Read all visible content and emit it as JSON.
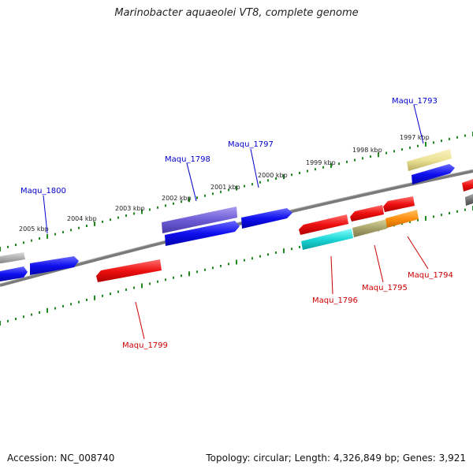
{
  "title": "Marinobacter aquaeolei VT8, complete genome",
  "footer": {
    "accession": "Accession: NC_008740",
    "summary": "Topology: circular; Length: 4,326,849 bp; Genes: 3,921"
  },
  "colors": {
    "backbone": "#808080",
    "tick": "#1f8a1f",
    "label_plus": "#0000cc",
    "label_minus": "#cc0000",
    "ruler_text": "#222222"
  },
  "ruler_labels": [
    "2005 kbp",
    "2004 kbp",
    "2003 kbp",
    "2002 kbp",
    "2001 kbp",
    "2000 kbp",
    "1999 kbp",
    "1998 kbp",
    "1997 kbp"
  ],
  "gene_labels": [
    {
      "text": "Maqu_1800",
      "strand": "plus"
    },
    {
      "text": "Maqu_1798",
      "strand": "plus"
    },
    {
      "text": "Maqu_1797",
      "strand": "plus"
    },
    {
      "text": "Maqu_1793",
      "strand": "plus"
    },
    {
      "text": "Maqu_1799",
      "strand": "minus"
    },
    {
      "text": "Maqu_1796",
      "strand": "minus"
    },
    {
      "text": "Maqu_1795",
      "strand": "minus"
    },
    {
      "text": "Maqu_1794",
      "strand": "minus"
    }
  ]
}
